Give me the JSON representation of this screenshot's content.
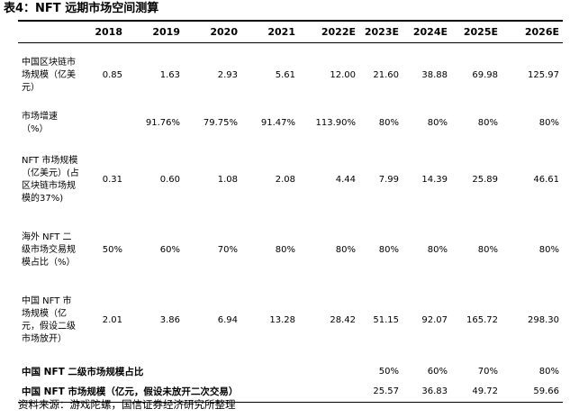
{
  "title": "表4：NFT 远期市场空间测算",
  "table": {
    "columns": [
      "",
      "2018",
      "2019",
      "2020",
      "2021",
      "2022E",
      "2023E",
      "2024E",
      "2025E",
      "2026E"
    ],
    "rows": [
      {
        "label": "中国区块链市场规模（亿美元）",
        "values": [
          "0.85",
          "1.63",
          "2.93",
          "5.61",
          "12.00",
          "21.60",
          "38.88",
          "69.98",
          "125.97"
        ]
      },
      {
        "label": "市场增速（%）",
        "values": [
          "",
          "91.76%",
          "79.75%",
          "91.47%",
          "113.90%",
          "80%",
          "80%",
          "80%",
          "80%"
        ]
      },
      {
        "label": "NFT 市场规模（亿美元）(占区块链市场规模的37%)",
        "values": [
          "0.31",
          "0.60",
          "1.08",
          "2.08",
          "4.44",
          "7.99",
          "14.39",
          "25.89",
          "46.61"
        ]
      },
      {
        "label": "海外 NFT 二级市场交易规模占比（%）",
        "values": [
          "50%",
          "60%",
          "70%",
          "80%",
          "80%",
          "80%",
          "80%",
          "80%",
          "80%"
        ]
      },
      {
        "label": "中国 NFT 市场规模（亿元，假设二级市场放开）",
        "values": [
          "2.01",
          "3.86",
          "6.94",
          "13.28",
          "28.42",
          "51.15",
          "92.07",
          "165.72",
          "298.30"
        ]
      }
    ],
    "summary_rows": [
      {
        "label": "中国 NFT 二级市场规模占比",
        "values": [
          "50%",
          "60%",
          "70%",
          "80%"
        ]
      },
      {
        "label": "中国 NFT 市场规模（亿元，假设未放开二次交易）",
        "values": [
          "25.57",
          "36.83",
          "49.72",
          "59.66"
        ]
      }
    ]
  },
  "source": "资料来源：游戏陀螺，国信证券经济研究所整理"
}
